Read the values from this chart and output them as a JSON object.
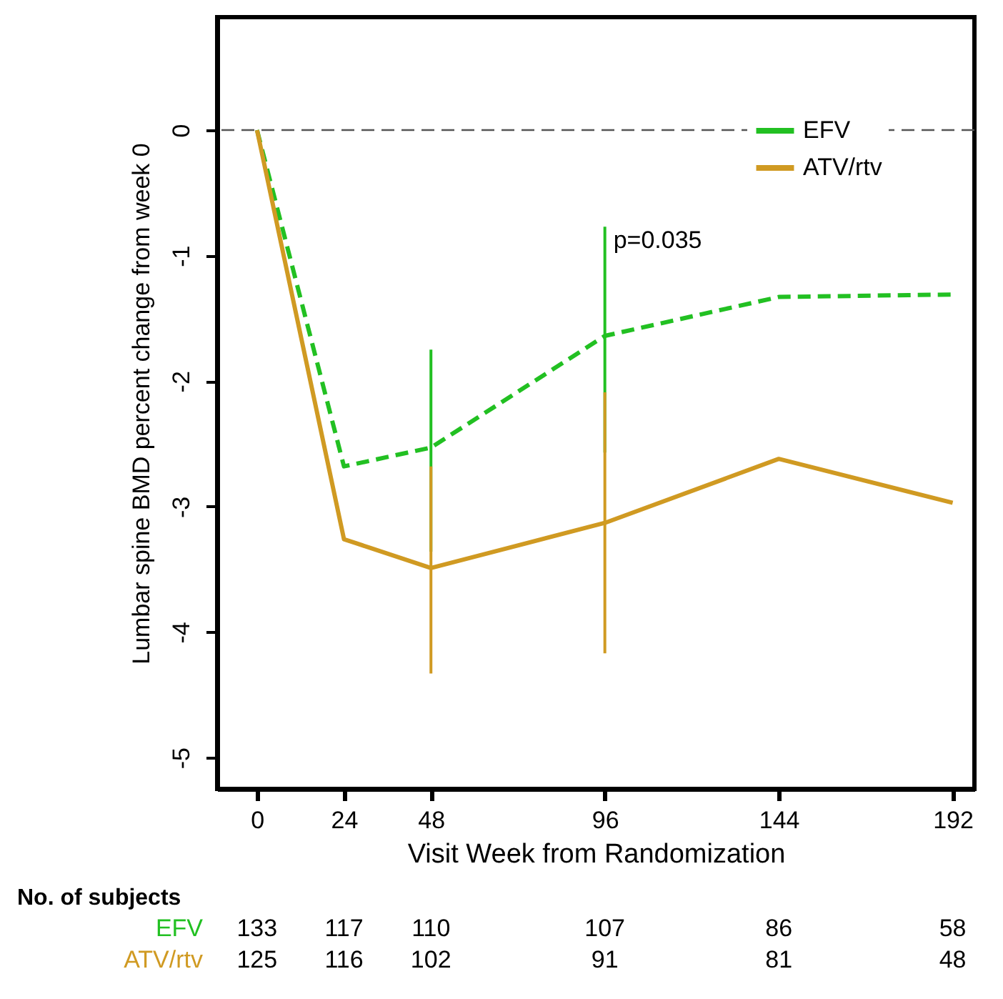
{
  "chart_data": {
    "type": "line",
    "xlabel": "Visit Week from Randomization",
    "ylabel": "Lumbar spine BMD percent change from week 0",
    "x": [
      0,
      24,
      48,
      96,
      144,
      192
    ],
    "series": [
      {
        "name": "EFV",
        "color": "#22c022",
        "line_style": "dashed",
        "values": [
          0,
          -2.68,
          -2.53,
          -1.64,
          -1.33,
          -1.31
        ],
        "errors": [
          null,
          null,
          [
            -3.36,
            -1.75
          ],
          [
            -2.57,
            -0.77
          ],
          null,
          null
        ]
      },
      {
        "name": "ATV/rtv",
        "color": "#d09a22",
        "line_style": "solid",
        "values": [
          0,
          -3.26,
          -3.49,
          -3.13,
          -2.62,
          -2.97
        ],
        "errors": [
          null,
          null,
          [
            -4.33,
            -2.68
          ],
          [
            -4.17,
            -2.09
          ],
          null,
          null
        ]
      }
    ],
    "xlim": [
      -11,
      198
    ],
    "xticks": [
      0,
      24,
      48,
      96,
      144,
      192
    ],
    "ylim": [
      -5.25,
      0.9
    ],
    "yticks": [
      {
        "value": 0,
        "label": "0"
      },
      {
        "value": -1,
        "label": "-1"
      },
      {
        "value": -2,
        "label": "-2"
      },
      {
        "value": -3,
        "label": "-3"
      },
      {
        "value": -4,
        "label": "-4"
      },
      {
        "value": -5,
        "label": "-5"
      }
    ],
    "ref_lines": [
      {
        "axis": "y",
        "value": 0,
        "color": "#555555",
        "line_style": "dashed"
      }
    ],
    "legend": "top right",
    "grid": false,
    "annotations": [
      {
        "text": "p=0.035",
        "x": 96,
        "y": -0.88
      },
      "No. of subjects",
      "133",
      "117",
      "110",
      "107",
      "86",
      "58",
      "125",
      "116",
      "102",
      "91",
      "81",
      "48"
    ]
  }
}
